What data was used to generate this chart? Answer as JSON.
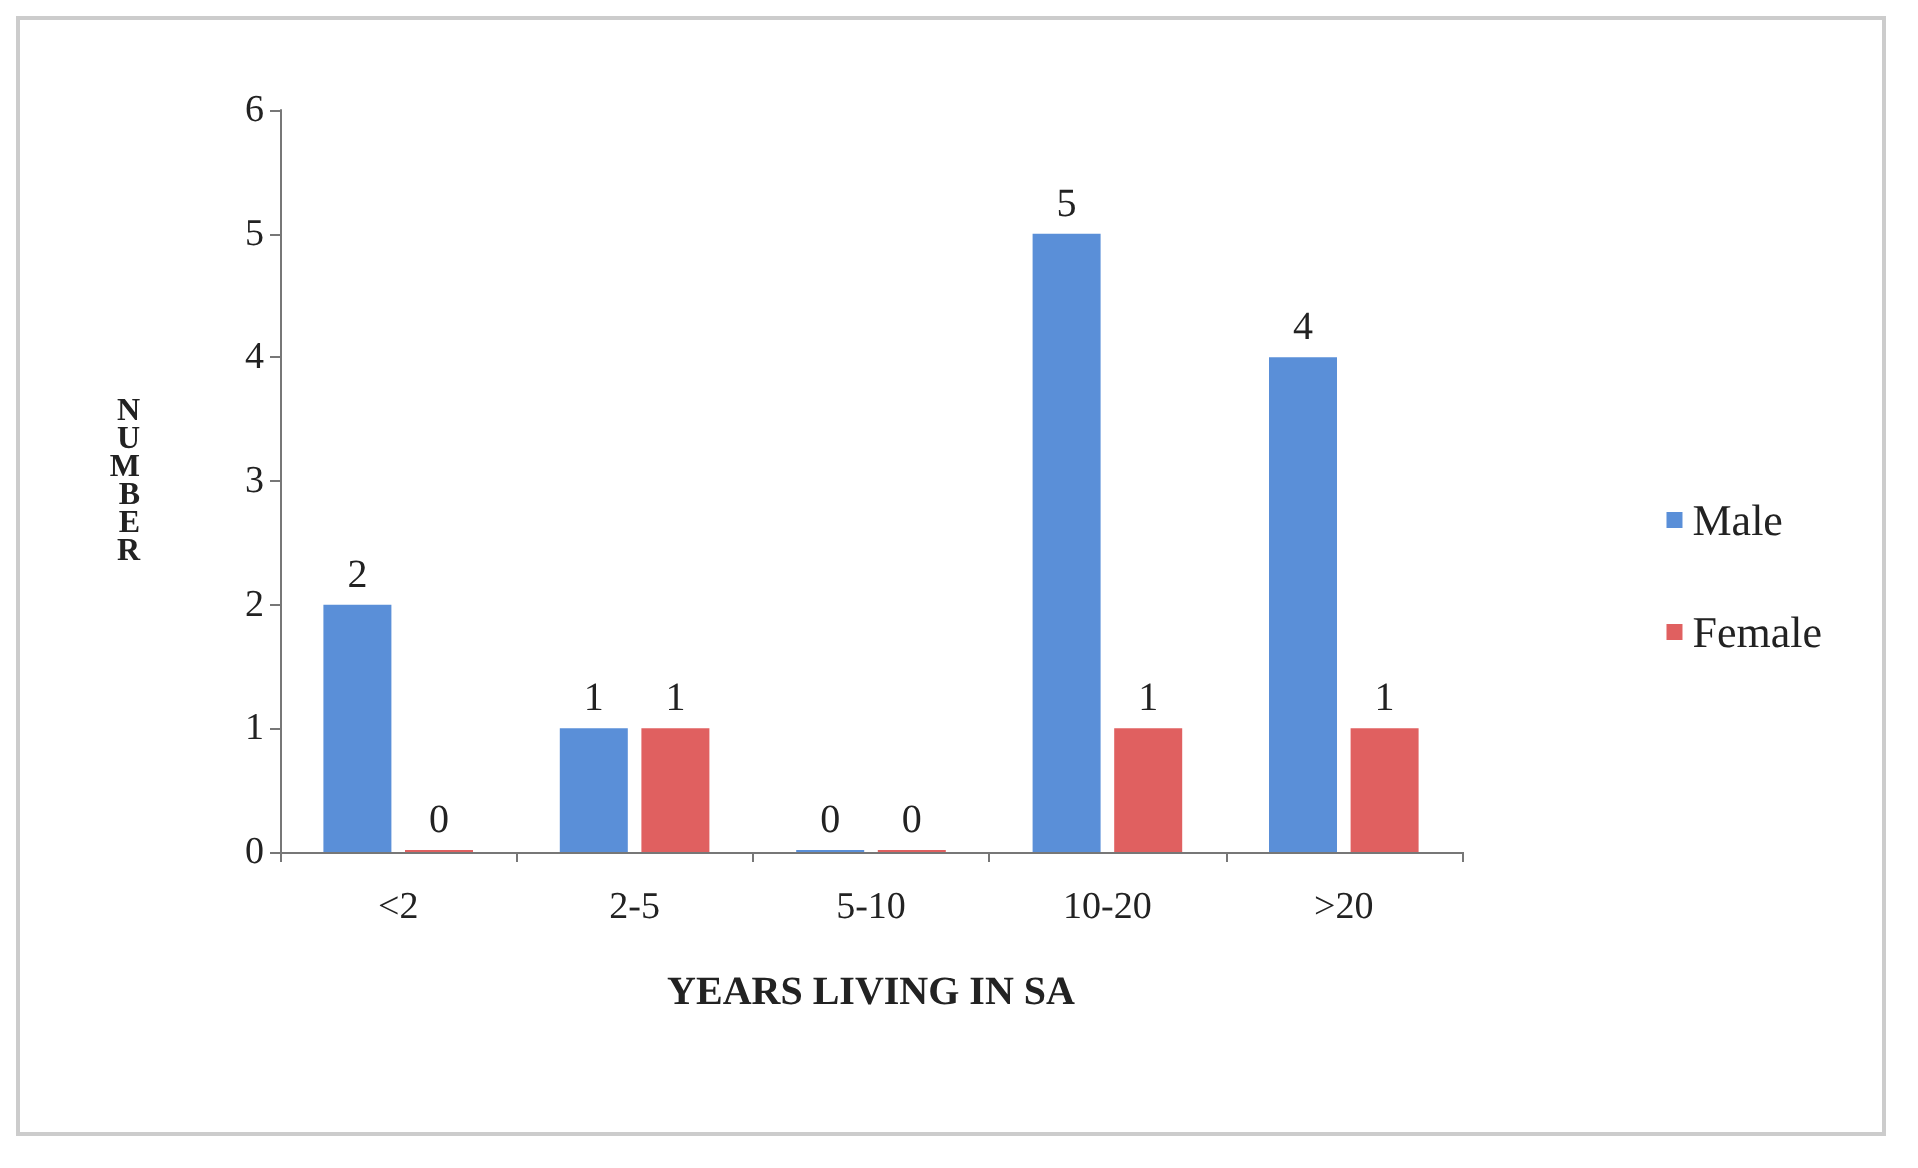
{
  "chart_data": {
    "type": "bar",
    "xlabel": "YEARS LIVING IN SA",
    "ylabel": "NUMBER",
    "categories": [
      "<2",
      "2-5",
      "5-10",
      "10-20",
      ">20"
    ],
    "series": [
      {
        "name": "Male",
        "color": "#5a8fd8",
        "values": [
          2,
          1,
          0,
          5,
          4
        ]
      },
      {
        "name": "Female",
        "color": "#e06060",
        "values": [
          0,
          1,
          0,
          1,
          1
        ]
      }
    ],
    "ylim": [
      0,
      6
    ],
    "yticks": [
      0,
      1,
      2,
      3,
      4,
      5,
      6
    ],
    "data_labels": true,
    "legend": "right",
    "grid": false
  }
}
